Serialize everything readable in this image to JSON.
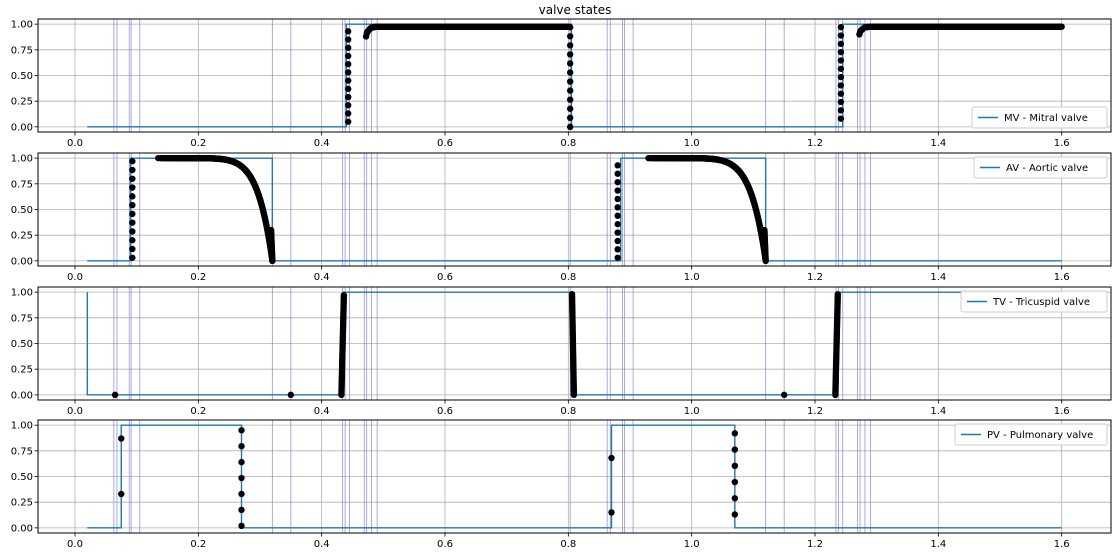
{
  "chart_data": {
    "type": "line",
    "title": "valve states",
    "xlim": [
      -0.06,
      1.68
    ],
    "ylim": [
      -0.05,
      1.05
    ],
    "xticks": [
      0.0,
      0.2,
      0.4,
      0.6,
      0.8,
      1.0,
      1.2,
      1.4,
      1.6
    ],
    "xtick_labels": [
      "0.0",
      "0.2",
      "0.4",
      "0.6",
      "0.8",
      "1.0",
      "1.2",
      "1.4",
      "1.6"
    ],
    "yticks": [
      0.0,
      0.25,
      0.5,
      0.75,
      1.0
    ],
    "ytick_labels": [
      "0.00",
      "0.25",
      "0.50",
      "0.75",
      "1.00"
    ],
    "grid": true,
    "legend_position": "right",
    "colors": {
      "line": "#1f77b4",
      "markers": "#000000",
      "vlines": "#7b7bd6",
      "grid": "#b0b0b0"
    },
    "event_lines_x": [
      0.063,
      0.068,
      0.088,
      0.091,
      0.105,
      0.32,
      0.35,
      0.434,
      0.438,
      0.445,
      0.469,
      0.473,
      0.481,
      0.49,
      0.803,
      0.863,
      0.868,
      0.888,
      0.891,
      0.905,
      1.12,
      1.15,
      1.234,
      1.238,
      1.245,
      1.269,
      1.273,
      1.281,
      1.29
    ],
    "panels": [
      {
        "series_name": "MV - Mitral valve",
        "line": {
          "x": [
            0.02,
            0.44,
            0.44,
            0.805,
            0.805,
            1.245,
            1.245,
            1.6
          ],
          "y": [
            0,
            0,
            1,
            1,
            0,
            0,
            1,
            1
          ]
        },
        "marker_columns": [
          {
            "x": 0.443,
            "y_min": 0.05,
            "y_max": 0.93
          },
          {
            "x": 0.803,
            "y_min": 0.0,
            "y_max": 0.97
          },
          {
            "x": 1.242,
            "y_min": 0.08,
            "y_max": 0.97
          }
        ],
        "marker_curves": [
          {
            "x_start": 0.472,
            "x_end": 0.8,
            "y_start": 0.88,
            "y_plateau": 0.975,
            "shape": "rise_plateau"
          },
          {
            "x_start": 1.272,
            "x_end": 1.6,
            "y_start": 0.9,
            "y_plateau": 0.975,
            "shape": "rise_plateau"
          }
        ],
        "marker_points": []
      },
      {
        "series_name": "AV - Aortic valve",
        "line": {
          "x": [
            0.02,
            0.09,
            0.09,
            0.32,
            0.32,
            0.885,
            0.885,
            1.12,
            1.12,
            1.6
          ],
          "y": [
            0,
            0,
            1,
            1,
            0,
            0,
            1,
            1,
            0,
            0
          ]
        },
        "marker_columns": [
          {
            "x": 0.093,
            "y_min": 0.03,
            "y_max": 0.97
          },
          {
            "x": 0.88,
            "y_min": 0.03,
            "y_max": 0.93
          }
        ],
        "marker_curves": [
          {
            "x_start": 0.135,
            "x_end": 0.32,
            "y_start": 1.0,
            "y_end": 0.0,
            "shape": "decay"
          },
          {
            "x_start": 0.93,
            "x_end": 1.12,
            "y_start": 1.0,
            "y_end": 0.0,
            "shape": "decay"
          }
        ],
        "marker_points": []
      },
      {
        "series_name": "TV - Tricuspid valve",
        "line": {
          "x": [
            0.02,
            0.02,
            0.02,
            0.435,
            0.435,
            0.805,
            0.805,
            1.235,
            1.235,
            1.6
          ],
          "y": [
            0,
            1,
            0,
            0,
            1,
            1,
            0,
            0,
            1,
            1
          ]
        },
        "marker_columns": [],
        "marker_curves": [
          {
            "x_center": 0.436,
            "y_min": 0.0,
            "y_max": 0.97,
            "shape": "steep_rise"
          },
          {
            "x_center": 0.806,
            "y_min": 0.0,
            "y_max": 0.98,
            "shape": "steep_fall"
          },
          {
            "x_center": 1.237,
            "y_min": 0.0,
            "y_max": 0.98,
            "shape": "steep_rise"
          }
        ],
        "marker_points": [
          {
            "x": 0.065,
            "y": 0.0
          },
          {
            "x": 0.35,
            "y": 0.0
          },
          {
            "x": 1.15,
            "y": 0.0
          }
        ]
      },
      {
        "series_name": "PV - Pulmonary valve",
        "line": {
          "x": [
            0.02,
            0.075,
            0.075,
            0.27,
            0.27,
            0.87,
            0.87,
            1.07,
            1.07,
            1.6
          ],
          "y": [
            0,
            0,
            1,
            1,
            0,
            0,
            1,
            1,
            0,
            0
          ]
        },
        "marker_columns": [
          {
            "x": 0.27,
            "y_min": 0.02,
            "y_max": 0.95,
            "count": 7
          },
          {
            "x": 1.07,
            "y_min": 0.13,
            "y_max": 0.92,
            "count": 6
          }
        ],
        "marker_curves": [],
        "marker_points": [
          {
            "x": 0.075,
            "y": 0.87
          },
          {
            "x": 0.075,
            "y": 0.33
          },
          {
            "x": 0.87,
            "y": 0.68
          },
          {
            "x": 0.87,
            "y": 0.15
          }
        ]
      }
    ]
  }
}
